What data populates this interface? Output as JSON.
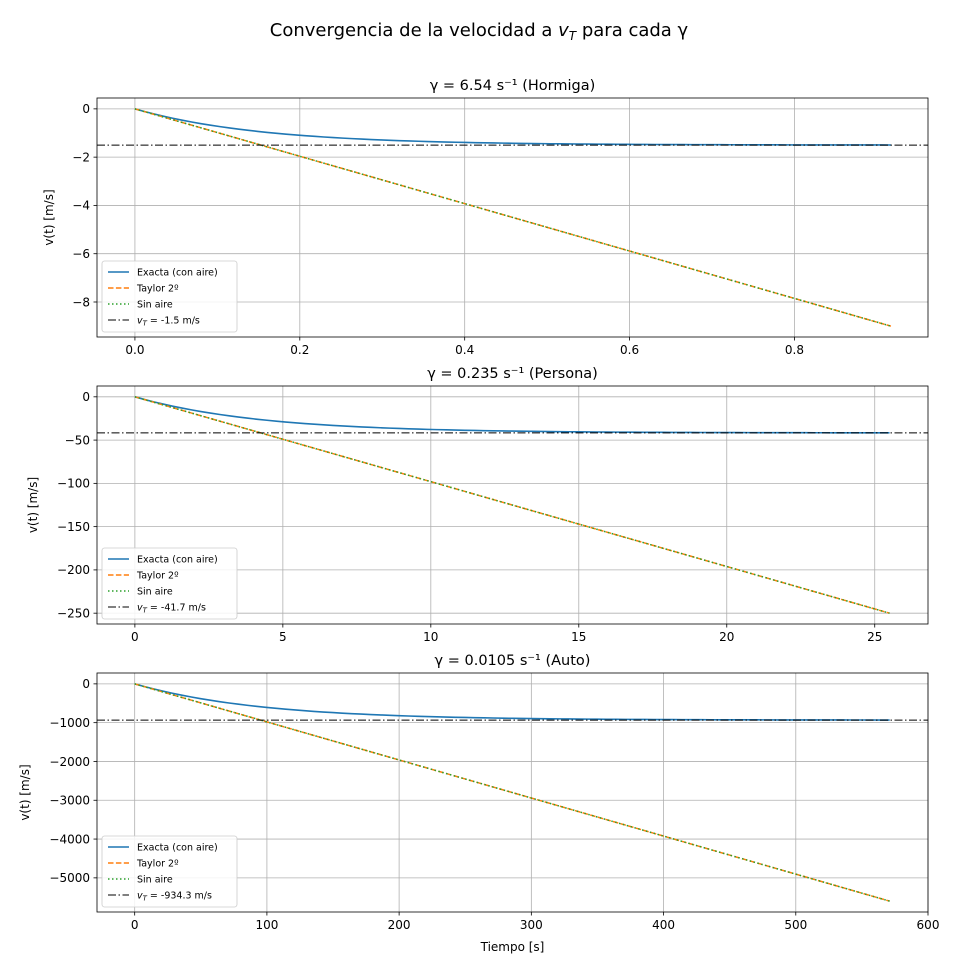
{
  "figure": {
    "suptitle_prefix": "Convergencia de la velocidad a ",
    "suptitle_var": "v",
    "suptitle_sub": "T",
    "suptitle_suffix": " para cada γ"
  },
  "legend_labels": {
    "exact": "Exacta (con aire)",
    "taylor": "Taylor 2º",
    "free": "Sin aire"
  },
  "colors": {
    "exact": "#1f77b4",
    "taylor": "#ff7f0e",
    "free": "#2ca02c",
    "terminal": "#000000",
    "grid": "#b0b0b0"
  },
  "chart_data": [
    {
      "type": "line",
      "title": "γ = 6.54 s⁻¹  (Hormiga)",
      "xlabel": "",
      "ylabel": "v(t) [m/s]",
      "xlim": [
        -0.046,
        0.962
      ],
      "ylim": [
        -9.45,
        0.45
      ],
      "xticks": [
        0.0,
        0.2,
        0.4,
        0.6,
        0.8
      ],
      "xticklabels": [
        "0.0",
        "0.2",
        "0.4",
        "0.6",
        "0.8"
      ],
      "yticks": [
        0,
        -2,
        -4,
        -6,
        -8
      ],
      "yticklabels": [
        "0",
        "−2",
        "−4",
        "−6",
        "−8"
      ],
      "grid": true,
      "legend_position": "lower-left",
      "gamma": 6.54,
      "t_max": 0.917,
      "v_terminal": -1.5,
      "terminal_label": " = -1.5 m/s",
      "series": [
        {
          "name": "Exacta (con aire)",
          "x": [
            0.0,
            0.1,
            0.2,
            0.3,
            0.4,
            0.5,
            0.6,
            0.7,
            0.8,
            0.917
          ],
          "y": [
            0.0,
            -0.72,
            -1.09,
            -1.29,
            -1.39,
            -1.44,
            -1.47,
            -1.48,
            -1.49,
            -1.5
          ]
        },
        {
          "name": "Taylor 2º",
          "x": [
            0.0,
            0.917
          ],
          "y": [
            0.0,
            -9.0
          ]
        },
        {
          "name": "Sin aire",
          "x": [
            0.0,
            0.917
          ],
          "y": [
            0.0,
            -9.0
          ]
        },
        {
          "name": "vT",
          "x": [
            -0.046,
            0.962
          ],
          "y": [
            -1.5,
            -1.5
          ]
        }
      ]
    },
    {
      "type": "line",
      "title": "γ = 0.235 s⁻¹  (Persona)",
      "xlabel": "",
      "ylabel": "v(t) [m/s]",
      "xlim": [
        -1.28,
        26.8
      ],
      "ylim": [
        -262.5,
        12.5
      ],
      "xticks": [
        0,
        5,
        10,
        15,
        20,
        25
      ],
      "xticklabels": [
        "0",
        "5",
        "10",
        "15",
        "20",
        "25"
      ],
      "yticks": [
        0,
        -50,
        -100,
        -150,
        -200,
        -250
      ],
      "yticklabels": [
        "0",
        "−50",
        "−100",
        "−150",
        "−200",
        "−250"
      ],
      "grid": true,
      "legend_position": "lower-left",
      "gamma": 0.235,
      "t_max": 25.5,
      "v_terminal": -41.7,
      "terminal_label": " = -41.7 m/s",
      "series": [
        {
          "name": "Exacta (con aire)",
          "x": [
            0,
            2.5,
            5,
            7.5,
            10,
            12.5,
            15,
            20,
            25.5
          ],
          "y": [
            0,
            -18.9,
            -29.2,
            -34.9,
            -37.9,
            -39.5,
            -40.5,
            -41.3,
            -41.6
          ]
        },
        {
          "name": "Taylor 2º",
          "x": [
            0,
            25.5
          ],
          "y": [
            0,
            -250
          ]
        },
        {
          "name": "Sin aire",
          "x": [
            0,
            25.5
          ],
          "y": [
            0,
            -250
          ]
        },
        {
          "name": "vT",
          "x": [
            -1.28,
            26.8
          ],
          "y": [
            -41.7,
            -41.7
          ]
        }
      ]
    },
    {
      "type": "line",
      "title": "γ = 0.0105 s⁻¹  (Auto)",
      "xlabel": "Tiempo [s]",
      "ylabel": "v(t) [m/s]",
      "xlim": [
        -28.5,
        600
      ],
      "ylim": [
        -5880,
        280
      ],
      "xticks": [
        0,
        100,
        200,
        300,
        400,
        500,
        600
      ],
      "xticklabels": [
        "0",
        "100",
        "200",
        "300",
        "400",
        "500",
        "600"
      ],
      "yticks": [
        0,
        -1000,
        -2000,
        -3000,
        -4000,
        -5000
      ],
      "yticklabels": [
        "0",
        "−1000",
        "−2000",
        "−3000",
        "−4000",
        "−5000"
      ],
      "grid": true,
      "legend_position": "lower-left",
      "gamma": 0.0105,
      "t_max": 571,
      "v_terminal": -934.3,
      "terminal_label": " = -934.3 m/s",
      "series": [
        {
          "name": "Exacta (con aire)",
          "x": [
            0,
            50,
            100,
            150,
            200,
            300,
            400,
            500,
            571
          ],
          "y": [
            0,
            -382,
            -607,
            -740,
            -818,
            -894,
            -920,
            -929,
            -932
          ]
        },
        {
          "name": "Taylor 2º",
          "x": [
            0,
            571
          ],
          "y": [
            0,
            -5600
          ]
        },
        {
          "name": "Sin aire",
          "x": [
            0,
            571
          ],
          "y": [
            0,
            -5600
          ]
        },
        {
          "name": "vT",
          "x": [
            -28.5,
            600
          ],
          "y": [
            -934.3,
            -934.3
          ]
        }
      ]
    }
  ]
}
